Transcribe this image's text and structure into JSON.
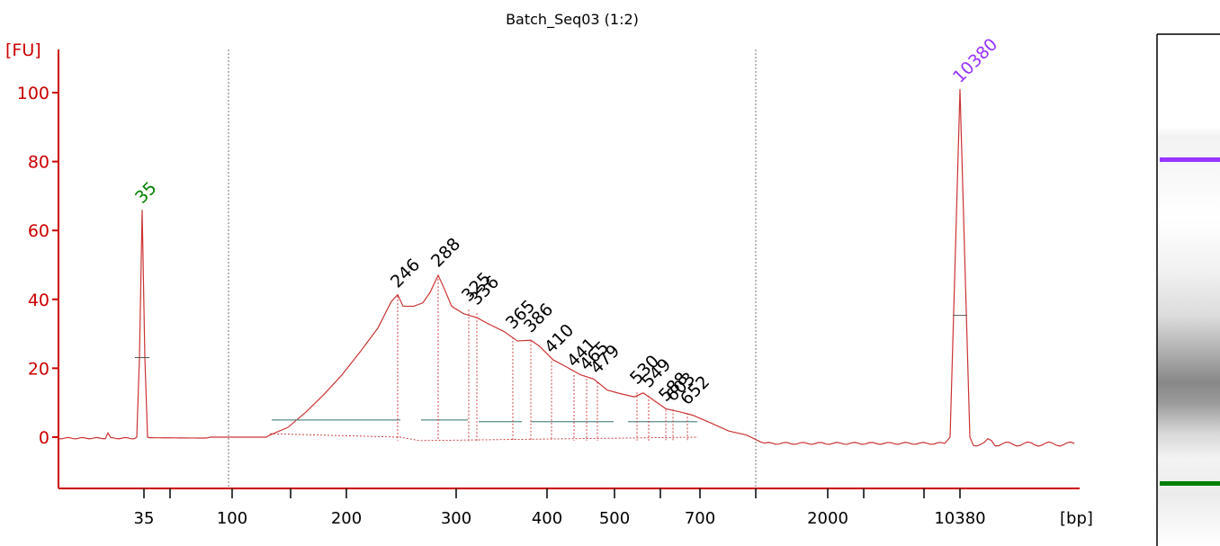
{
  "chart_data": {
    "type": "line",
    "title": "Batch_Seq03 (1:2)",
    "ylabel": "[FU]",
    "xlabel": "[bp]",
    "ylim": [
      -14,
      112
    ],
    "yticks": [
      0,
      20,
      40,
      60,
      80,
      100
    ],
    "xticks": [
      "35",
      "",
      "100",
      "",
      "200",
      "300",
      "400",
      "500",
      "",
      "700",
      "",
      "2000",
      "",
      "",
      "10380"
    ],
    "markers": [
      {
        "label": "35",
        "value": 66,
        "color": "#008000"
      },
      {
        "label": "10380",
        "value": 101,
        "color": "#9933ff"
      }
    ],
    "peaks": [
      {
        "label": "246",
        "value": 41
      },
      {
        "label": "288",
        "value": 47
      },
      {
        "label": "325",
        "value": 37
      },
      {
        "label": "336",
        "value": 36
      },
      {
        "label": "365",
        "value": 29
      },
      {
        "label": "386",
        "value": 28
      },
      {
        "label": "410",
        "value": 22
      },
      {
        "label": "441",
        "value": 18
      },
      {
        "label": "465",
        "value": 17
      },
      {
        "label": "479",
        "value": 16
      },
      {
        "label": "530",
        "value": 13
      },
      {
        "label": "549",
        "value": 12
      },
      {
        "label": "588",
        "value": 8
      },
      {
        "label": "603",
        "value": 8
      },
      {
        "label": "652",
        "value": 7
      }
    ],
    "legend": "none",
    "grid": false
  },
  "gel": {
    "bands": [
      {
        "position": "upper-marker",
        "color": "#9933ff"
      },
      {
        "position": "lower-marker",
        "color": "#008000"
      }
    ]
  }
}
